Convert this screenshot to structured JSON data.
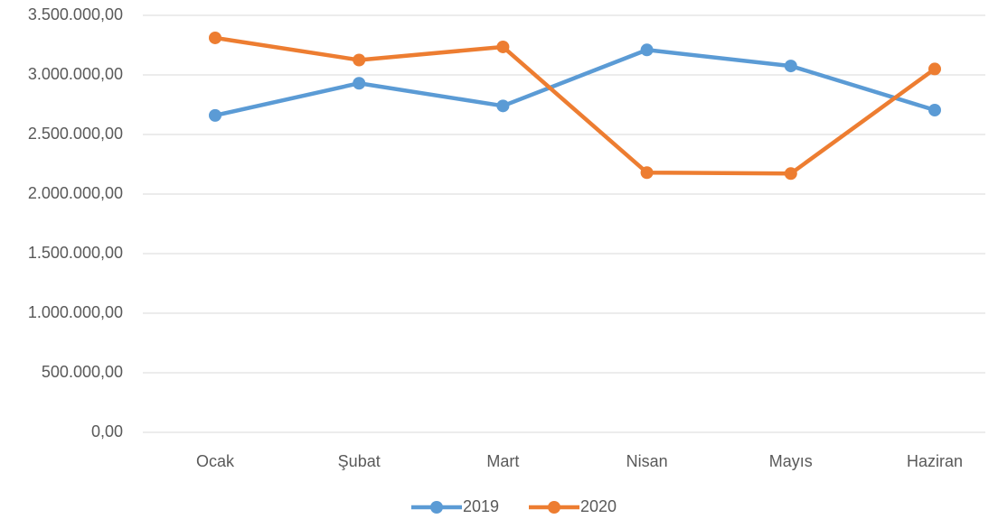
{
  "chart_data": {
    "type": "line",
    "categories": [
      "Ocak",
      "Şubat",
      "Mart",
      "Nisan",
      "Mayıs",
      "Haziran"
    ],
    "series": [
      {
        "name": "2019",
        "color": "#5b9bd5",
        "values": [
          2660000,
          2930000,
          2740000,
          3210000,
          3075000,
          2705000
        ]
      },
      {
        "name": "2020",
        "color": "#ed7d31",
        "values": [
          3311000,
          3125000,
          3235000,
          2180000,
          2172000,
          3050000
        ]
      }
    ],
    "ylim": [
      0,
      3500000
    ],
    "yticks": [
      {
        "value": 0,
        "label": "0,00"
      },
      {
        "value": 500000,
        "label": "500.000,00"
      },
      {
        "value": 1000000,
        "label": "1.000.000,00"
      },
      {
        "value": 1500000,
        "label": "1.500.000,00"
      },
      {
        "value": 2000000,
        "label": "2.000.000,00"
      },
      {
        "value": 2500000,
        "label": "2.500.000,00"
      },
      {
        "value": 3000000,
        "label": "3.000.000,00"
      },
      {
        "value": 3500000,
        "label": "3.500.000,00"
      }
    ],
    "grid": true,
    "legend": "bottom"
  }
}
